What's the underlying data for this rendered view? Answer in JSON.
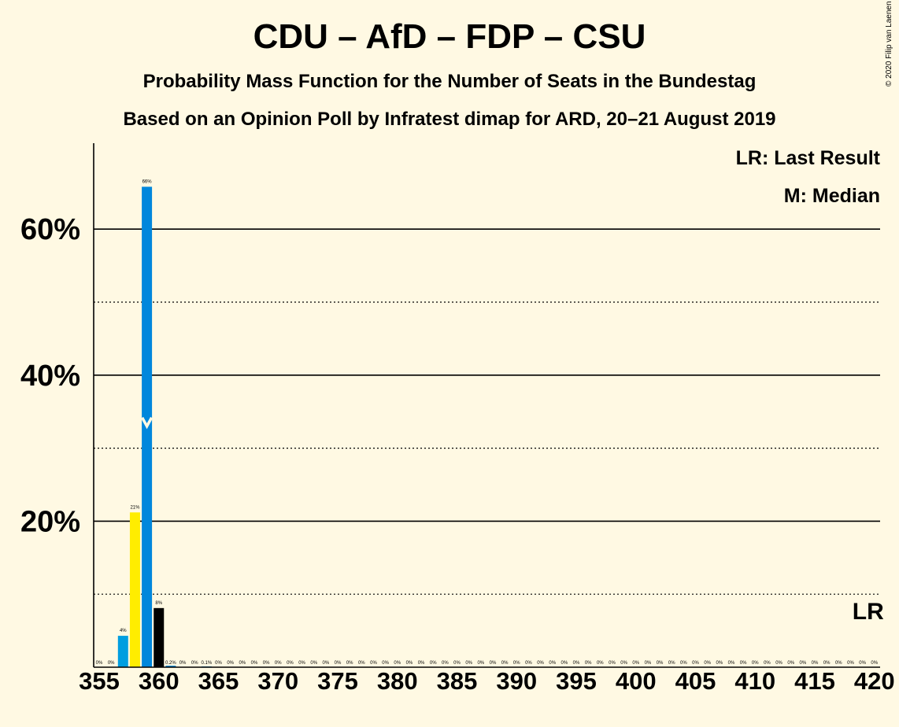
{
  "title": "CDU – AfD – FDP – CSU",
  "subtitle": "Probability Mass Function for the Number of Seats in the Bundestag",
  "subtitle2": "Based on an Opinion Poll by Infratest dimap for ARD, 20–21 August 2019",
  "copyright": "© 2020 Filip van Laenen",
  "legend": {
    "lr": "LR: Last Result",
    "m": "M: Median"
  },
  "lr_marker": "LR",
  "median_seat": 359,
  "last_result_seat": 420,
  "colors": {
    "background": "#FFF9E3",
    "blue": "#0087DC",
    "light_blue": "#009EE0",
    "yellow": "#FFED00",
    "black": "#000000"
  },
  "chart_data": {
    "type": "bar",
    "xlim": [
      355,
      420
    ],
    "ylim": [
      0,
      70
    ],
    "y_ticks": [
      20,
      40,
      60
    ],
    "y_tick_labels": [
      "20%",
      "40%",
      "60%"
    ],
    "y_minor_ticks": [
      10,
      30,
      50
    ],
    "x_ticks": [
      355,
      360,
      365,
      370,
      375,
      380,
      385,
      390,
      395,
      400,
      405,
      410,
      415,
      420
    ],
    "x_tick_labels": [
      "355",
      "360",
      "365",
      "370",
      "375",
      "380",
      "385",
      "390",
      "395",
      "400",
      "405",
      "410",
      "415",
      "420"
    ],
    "bars": [
      {
        "seat": 355,
        "value": 0,
        "label": "0%",
        "color": "#0087DC"
      },
      {
        "seat": 356,
        "value": 0,
        "label": "0%",
        "color": "#0087DC"
      },
      {
        "seat": 357,
        "value": 4.3,
        "label": "4%",
        "color": "#009EE0"
      },
      {
        "seat": 358,
        "value": 21.2,
        "label": "21%",
        "color": "#FFED00"
      },
      {
        "seat": 359,
        "value": 65.8,
        "label": "66%",
        "color": "#0087DC"
      },
      {
        "seat": 360,
        "value": 8.1,
        "label": "8%",
        "color": "#000000"
      },
      {
        "seat": 361,
        "value": 0.2,
        "label": "0.2%",
        "color": "#0087DC"
      },
      {
        "seat": 362,
        "value": 0,
        "label": "0%",
        "color": "#0087DC"
      },
      {
        "seat": 363,
        "value": 0,
        "label": "0%",
        "color": "#0087DC"
      },
      {
        "seat": 364,
        "value": 0.1,
        "label": "0.1%",
        "color": "#0087DC"
      },
      {
        "seat": 365,
        "value": 0,
        "label": "0%",
        "color": "#0087DC"
      },
      {
        "seat": 366,
        "value": 0,
        "label": "0%",
        "color": "#0087DC"
      },
      {
        "seat": 367,
        "value": 0,
        "label": "0%",
        "color": "#0087DC"
      },
      {
        "seat": 368,
        "value": 0,
        "label": "0%",
        "color": "#0087DC"
      },
      {
        "seat": 369,
        "value": 0,
        "label": "0%",
        "color": "#0087DC"
      },
      {
        "seat": 370,
        "value": 0,
        "label": "0%",
        "color": "#0087DC"
      },
      {
        "seat": 371,
        "value": 0,
        "label": "0%",
        "color": "#0087DC"
      },
      {
        "seat": 372,
        "value": 0,
        "label": "0%",
        "color": "#0087DC"
      },
      {
        "seat": 373,
        "value": 0,
        "label": "0%",
        "color": "#0087DC"
      },
      {
        "seat": 374,
        "value": 0,
        "label": "0%",
        "color": "#0087DC"
      },
      {
        "seat": 375,
        "value": 0,
        "label": "0%",
        "color": "#0087DC"
      },
      {
        "seat": 376,
        "value": 0,
        "label": "0%",
        "color": "#0087DC"
      },
      {
        "seat": 377,
        "value": 0,
        "label": "0%",
        "color": "#0087DC"
      },
      {
        "seat": 378,
        "value": 0,
        "label": "0%",
        "color": "#0087DC"
      },
      {
        "seat": 379,
        "value": 0,
        "label": "0%",
        "color": "#0087DC"
      },
      {
        "seat": 380,
        "value": 0,
        "label": "0%",
        "color": "#0087DC"
      },
      {
        "seat": 381,
        "value": 0,
        "label": "0%",
        "color": "#0087DC"
      },
      {
        "seat": 382,
        "value": 0,
        "label": "0%",
        "color": "#0087DC"
      },
      {
        "seat": 383,
        "value": 0,
        "label": "0%",
        "color": "#0087DC"
      },
      {
        "seat": 384,
        "value": 0,
        "label": "0%",
        "color": "#0087DC"
      },
      {
        "seat": 385,
        "value": 0,
        "label": "0%",
        "color": "#0087DC"
      },
      {
        "seat": 386,
        "value": 0,
        "label": "0%",
        "color": "#0087DC"
      },
      {
        "seat": 387,
        "value": 0,
        "label": "0%",
        "color": "#0087DC"
      },
      {
        "seat": 388,
        "value": 0,
        "label": "0%",
        "color": "#0087DC"
      },
      {
        "seat": 389,
        "value": 0,
        "label": "0%",
        "color": "#0087DC"
      },
      {
        "seat": 390,
        "value": 0,
        "label": "0%",
        "color": "#0087DC"
      },
      {
        "seat": 391,
        "value": 0,
        "label": "0%",
        "color": "#0087DC"
      },
      {
        "seat": 392,
        "value": 0,
        "label": "0%",
        "color": "#0087DC"
      },
      {
        "seat": 393,
        "value": 0,
        "label": "0%",
        "color": "#0087DC"
      },
      {
        "seat": 394,
        "value": 0,
        "label": "0%",
        "color": "#0087DC"
      },
      {
        "seat": 395,
        "value": 0,
        "label": "0%",
        "color": "#0087DC"
      },
      {
        "seat": 396,
        "value": 0,
        "label": "0%",
        "color": "#0087DC"
      },
      {
        "seat": 397,
        "value": 0,
        "label": "0%",
        "color": "#0087DC"
      },
      {
        "seat": 398,
        "value": 0,
        "label": "0%",
        "color": "#0087DC"
      },
      {
        "seat": 399,
        "value": 0,
        "label": "0%",
        "color": "#0087DC"
      },
      {
        "seat": 400,
        "value": 0,
        "label": "0%",
        "color": "#0087DC"
      },
      {
        "seat": 401,
        "value": 0,
        "label": "0%",
        "color": "#0087DC"
      },
      {
        "seat": 402,
        "value": 0,
        "label": "0%",
        "color": "#0087DC"
      },
      {
        "seat": 403,
        "value": 0,
        "label": "0%",
        "color": "#0087DC"
      },
      {
        "seat": 404,
        "value": 0,
        "label": "0%",
        "color": "#0087DC"
      },
      {
        "seat": 405,
        "value": 0,
        "label": "0%",
        "color": "#0087DC"
      },
      {
        "seat": 406,
        "value": 0,
        "label": "0%",
        "color": "#0087DC"
      },
      {
        "seat": 407,
        "value": 0,
        "label": "0%",
        "color": "#0087DC"
      },
      {
        "seat": 408,
        "value": 0,
        "label": "0%",
        "color": "#0087DC"
      },
      {
        "seat": 409,
        "value": 0,
        "label": "0%",
        "color": "#0087DC"
      },
      {
        "seat": 410,
        "value": 0,
        "label": "0%",
        "color": "#0087DC"
      },
      {
        "seat": 411,
        "value": 0,
        "label": "0%",
        "color": "#0087DC"
      },
      {
        "seat": 412,
        "value": 0,
        "label": "0%",
        "color": "#0087DC"
      },
      {
        "seat": 413,
        "value": 0,
        "label": "0%",
        "color": "#0087DC"
      },
      {
        "seat": 414,
        "value": 0,
        "label": "0%",
        "color": "#0087DC"
      },
      {
        "seat": 415,
        "value": 0,
        "label": "0%",
        "color": "#0087DC"
      },
      {
        "seat": 416,
        "value": 0,
        "label": "0%",
        "color": "#0087DC"
      },
      {
        "seat": 417,
        "value": 0,
        "label": "0%",
        "color": "#0087DC"
      },
      {
        "seat": 418,
        "value": 0,
        "label": "0%",
        "color": "#0087DC"
      },
      {
        "seat": 419,
        "value": 0,
        "label": "0%",
        "color": "#0087DC"
      },
      {
        "seat": 420,
        "value": 0,
        "label": "0%",
        "color": "#0087DC"
      }
    ]
  }
}
